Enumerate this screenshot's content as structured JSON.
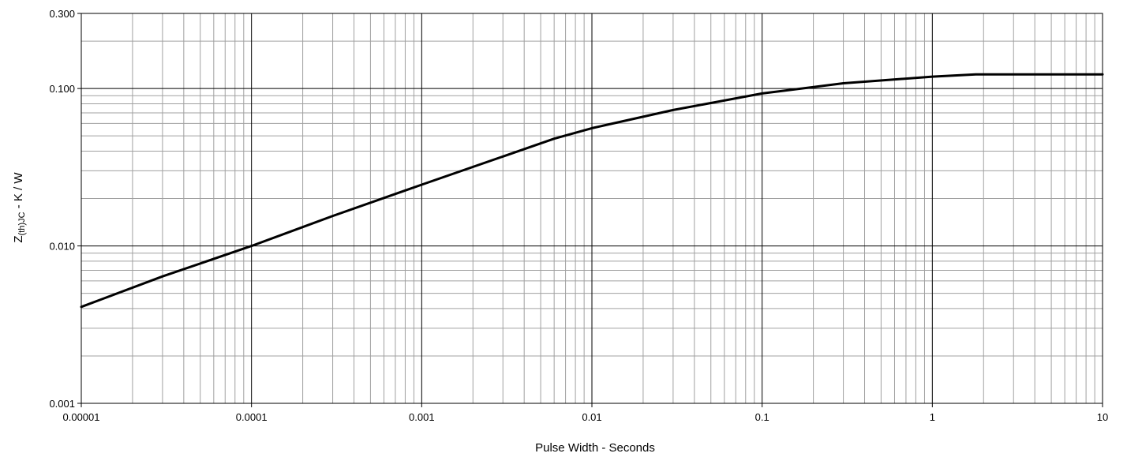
{
  "chart_data": {
    "type": "line",
    "xlabel": "Pulse Width - Seconds",
    "ylabel_main": "Z",
    "ylabel_sub": "(th)JC",
    "ylabel_suffix": " - K / W",
    "x_scale": "log",
    "y_scale": "log",
    "xlim": [
      1e-05,
      10
    ],
    "ylim": [
      0.001,
      0.3
    ],
    "grid": true,
    "x_ticks": [
      {
        "value": 1e-05,
        "label": "0.00001"
      },
      {
        "value": 0.0001,
        "label": "0.0001"
      },
      {
        "value": 0.001,
        "label": "0.001"
      },
      {
        "value": 0.01,
        "label": "0.01"
      },
      {
        "value": 0.1,
        "label": "0.1"
      },
      {
        "value": 1,
        "label": "1"
      },
      {
        "value": 10,
        "label": "10"
      }
    ],
    "y_ticks": [
      {
        "value": 0.001,
        "label": "0.001"
      },
      {
        "value": 0.01,
        "label": "0.010"
      },
      {
        "value": 0.1,
        "label": "0.100"
      },
      {
        "value": 0.3,
        "label": "0.300"
      }
    ],
    "series": [
      {
        "color": "#000000",
        "points": [
          {
            "x": 1e-05,
            "y": 0.0041
          },
          {
            "x": 3e-05,
            "y": 0.0064
          },
          {
            "x": 0.0001,
            "y": 0.01
          },
          {
            "x": 0.0003,
            "y": 0.0155
          },
          {
            "x": 0.001,
            "y": 0.0245
          },
          {
            "x": 0.003,
            "y": 0.037
          },
          {
            "x": 0.006,
            "y": 0.048
          },
          {
            "x": 0.01,
            "y": 0.056
          },
          {
            "x": 0.03,
            "y": 0.073
          },
          {
            "x": 0.1,
            "y": 0.093
          },
          {
            "x": 0.3,
            "y": 0.108
          },
          {
            "x": 1,
            "y": 0.119
          },
          {
            "x": 1.8,
            "y": 0.123
          },
          {
            "x": 10,
            "y": 0.123
          }
        ]
      }
    ]
  }
}
